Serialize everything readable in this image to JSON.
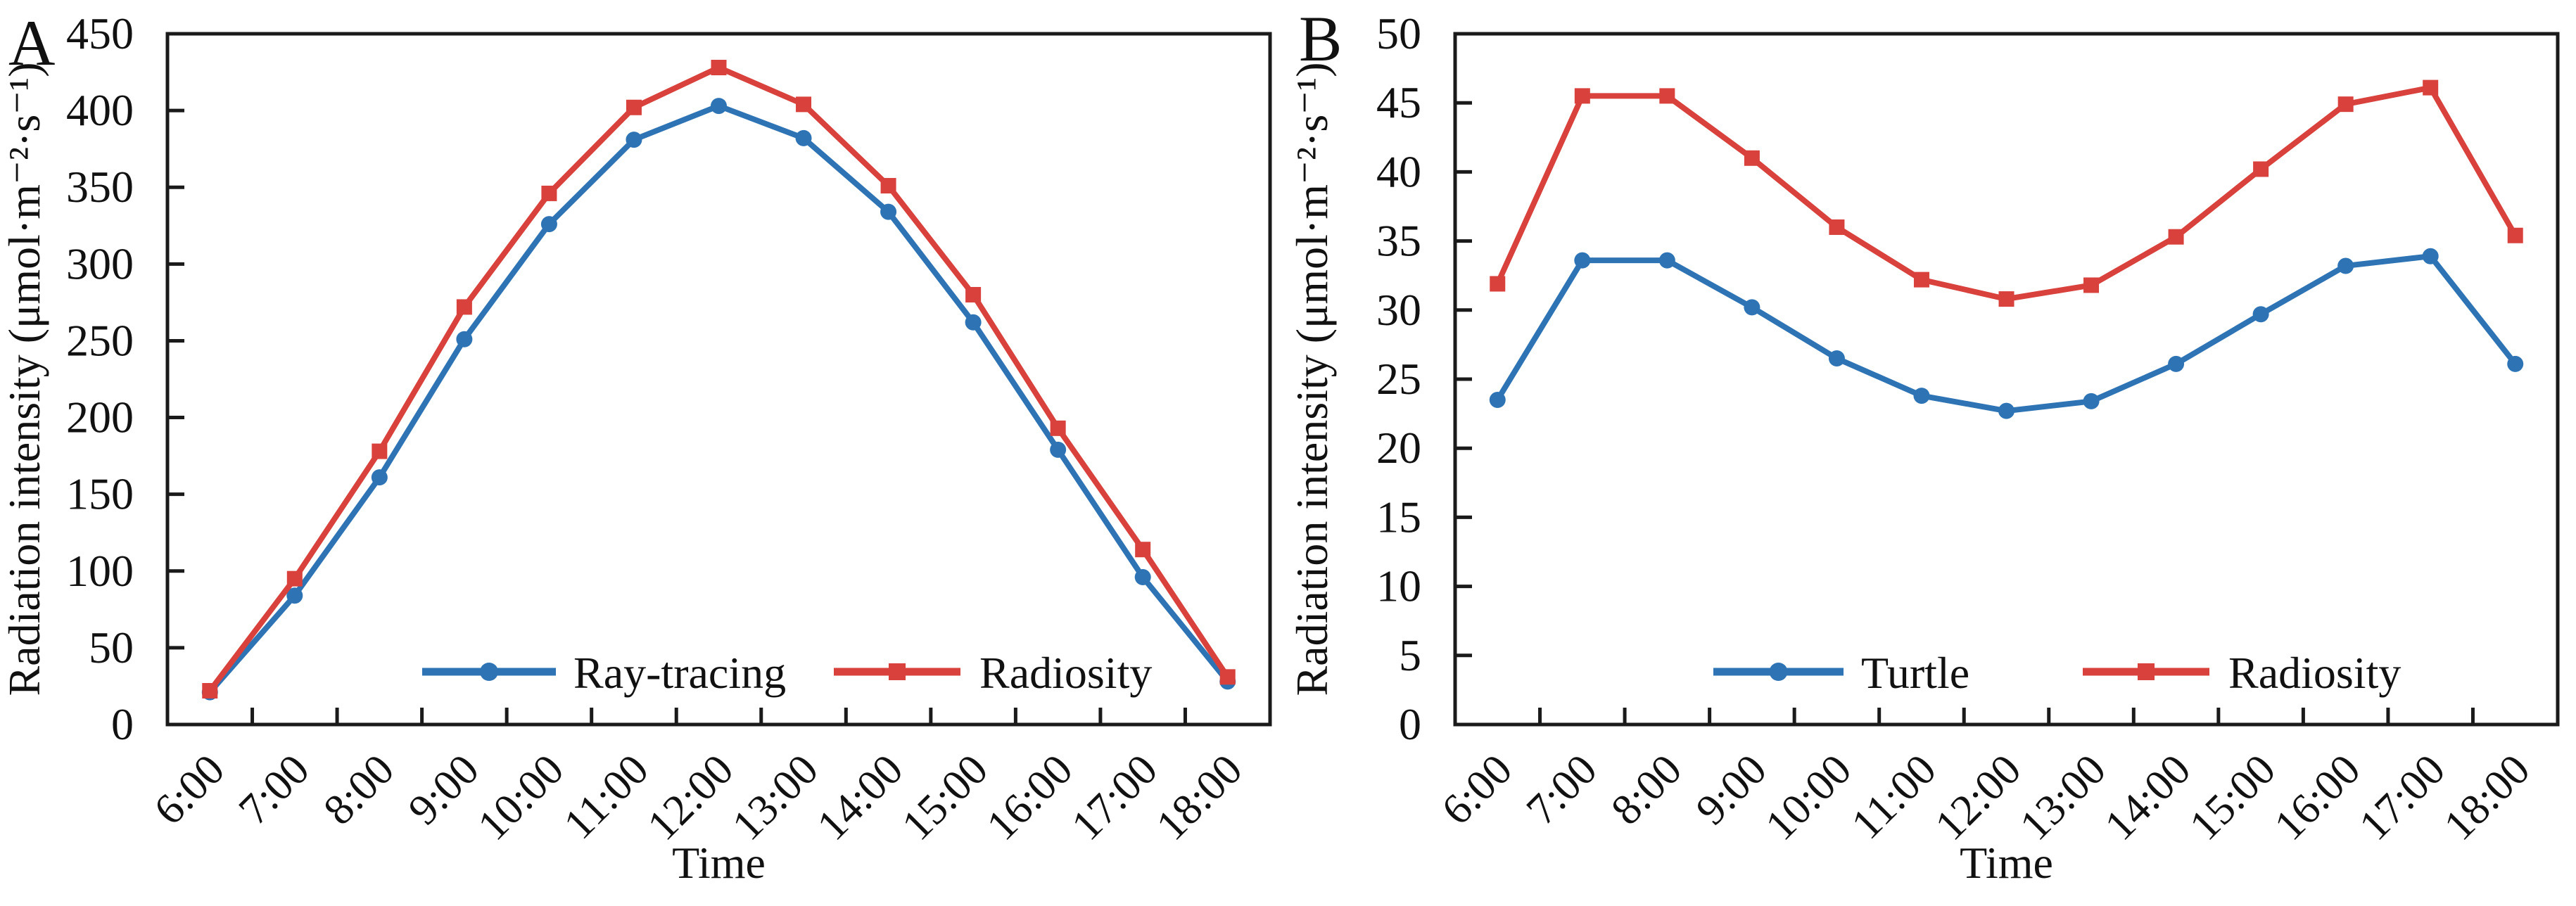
{
  "figure": {
    "background_color": "#FFFFFF",
    "axis_color": "#1A1A1A",
    "text_color": "#111111",
    "panels": [
      {
        "panel_label": "A"
      },
      {
        "panel_label": "B"
      }
    ]
  },
  "chart_data": [
    {
      "type": "line",
      "panel_label": "A",
      "title": "",
      "categories": [
        "6:00",
        "7:00",
        "8:00",
        "9:00",
        "10:00",
        "11:00",
        "12:00",
        "13:00",
        "14:00",
        "15:00",
        "16:00",
        "17:00",
        "18:00"
      ],
      "series": [
        {
          "name": "Ray-tracing",
          "color": "#2E74B5",
          "marker": "circle",
          "values": [
            21,
            84,
            161,
            251,
            326,
            381,
            403,
            382,
            334,
            262,
            179,
            96,
            28
          ]
        },
        {
          "name": "Radiosity",
          "color": "#D9413D",
          "marker": "square",
          "values": [
            22,
            95,
            178,
            272,
            346,
            402,
            428,
            404,
            351,
            280,
            193,
            114,
            31
          ]
        }
      ],
      "xlabel": "Time",
      "ylabel": "Radiation intensity (μmol·m⁻²·s⁻¹)",
      "ylim": [
        0,
        450
      ],
      "yticks": [
        0,
        50,
        100,
        150,
        200,
        250,
        300,
        350,
        400,
        450
      ],
      "grid": false,
      "legend_position": "inside-bottom"
    },
    {
      "type": "line",
      "panel_label": "B",
      "title": "",
      "categories": [
        "6:00",
        "7:00",
        "8:00",
        "9:00",
        "10:00",
        "11:00",
        "12:00",
        "13:00",
        "14:00",
        "15:00",
        "16:00",
        "17:00",
        "18:00"
      ],
      "series": [
        {
          "name": "Turtle",
          "color": "#2E74B5",
          "marker": "circle",
          "values": [
            23.5,
            33.6,
            33.6,
            30.2,
            26.5,
            23.8,
            22.7,
            23.4,
            26.1,
            29.7,
            33.2,
            33.9,
            26.1
          ]
        },
        {
          "name": "Radiosity",
          "color": "#D9413D",
          "marker": "square",
          "values": [
            31.9,
            45.5,
            45.5,
            41.0,
            36.0,
            32.2,
            30.8,
            31.8,
            35.3,
            40.2,
            44.9,
            46.1,
            35.4
          ]
        }
      ],
      "xlabel": "Time",
      "ylabel": "Radiation intensity (μmol·m⁻²·s⁻¹)",
      "ylim": [
        0,
        50
      ],
      "yticks": [
        0,
        5,
        10,
        15,
        20,
        25,
        30,
        35,
        40,
        45,
        50
      ],
      "grid": false,
      "legend_position": "inside-bottom"
    }
  ]
}
